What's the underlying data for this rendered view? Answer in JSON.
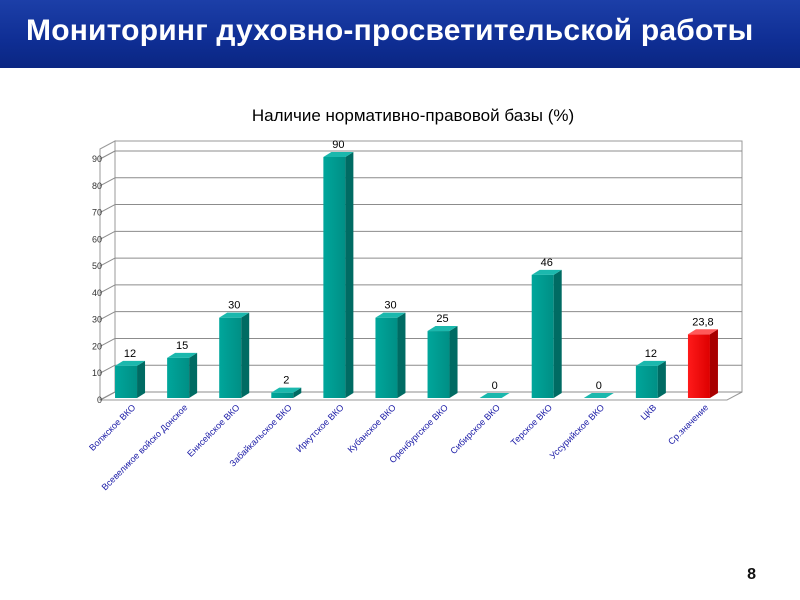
{
  "slide": {
    "title": "Мониторинг духовно-просветительской работы",
    "page_number": "8"
  },
  "colors": {
    "header_bg": "#0f2e94",
    "bar_teal": "#00968c",
    "bar_red": "#ee0000"
  },
  "chart_data": {
    "type": "bar",
    "title": "Наличие нормативно-правовой базы (%)",
    "xlabel": "",
    "ylabel": "",
    "ylim": [
      0,
      90
    ],
    "yticks": [
      "0",
      "10",
      "20",
      "30",
      "40",
      "50",
      "60",
      "70",
      "80",
      "90"
    ],
    "grid": true,
    "legend": "none",
    "categories": [
      "Волжское ВКО",
      "Всевеликое войско Донское",
      "Енисейское ВКО",
      "Забайкальское ВКО",
      "Иркутское ВКО",
      "Кубанское ВКО",
      "Оренбургское ВКО",
      "Сибирское ВКО",
      "Терское ВКО",
      "Уссурийское ВКО",
      "ЦКВ",
      "Ср.значение"
    ],
    "values": [
      12,
      15,
      30,
      2,
      90,
      30,
      25,
      0,
      46,
      0,
      12,
      23.8
    ],
    "value_labels": [
      "12",
      "15",
      "30",
      "2",
      "90",
      "30",
      "25",
      "0",
      "46",
      "0",
      "12",
      "23,8"
    ],
    "bar_colors": [
      "teal",
      "teal",
      "teal",
      "teal",
      "teal",
      "teal",
      "teal",
      "teal",
      "teal",
      "teal",
      "teal",
      "red"
    ]
  }
}
